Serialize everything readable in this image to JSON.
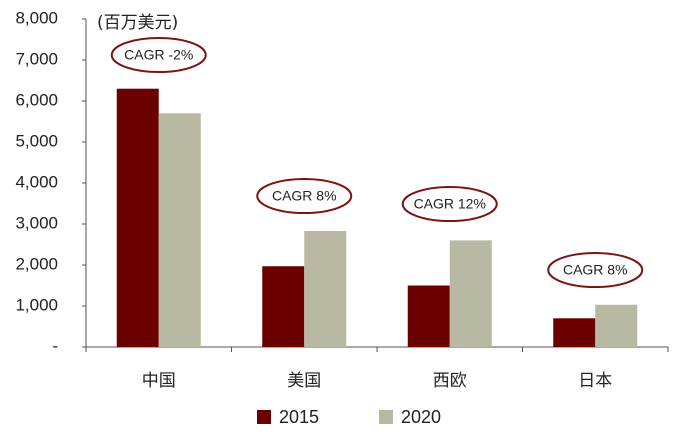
{
  "chart_data": {
    "type": "bar",
    "unit_label": "(百万美元)",
    "categories": [
      "中国",
      "美国",
      "西欧",
      "日本"
    ],
    "series": [
      {
        "name": "2015",
        "color": "#6b0000",
        "values": [
          6300,
          1970,
          1500,
          700
        ]
      },
      {
        "name": "2020",
        "color": "#b9b8a3",
        "values": [
          5700,
          2830,
          2600,
          1030
        ]
      }
    ],
    "annotations": [
      "CAGR -2%",
      "CAGR 8%",
      "CAGR 12%",
      "CAGR 8%"
    ],
    "annotation_border_color": "#7a1515",
    "y_ticks": [
      0,
      1000,
      2000,
      3000,
      4000,
      5000,
      6000,
      7000,
      8000
    ],
    "y_tick_labels": [
      "-",
      "1,000",
      "2,000",
      "3,000",
      "4,000",
      "5,000",
      "6,000",
      "7,000",
      "8,000"
    ],
    "ylim": [
      0,
      8000
    ],
    "grid": false,
    "legend_position": "bottom",
    "title": "",
    "xlabel": "",
    "ylabel": ""
  }
}
